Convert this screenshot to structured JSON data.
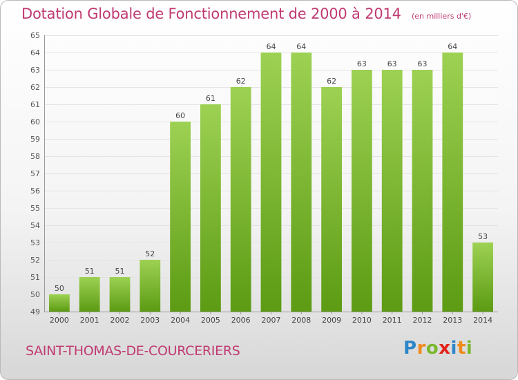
{
  "title": "Dotation Globale de Fonctionnement de 2000 à 2014",
  "subtitle": "(en milliers d'€)",
  "commune": "SAINT-THOMAS-DE-COURCERIERS",
  "logo": {
    "text": "Proxiti",
    "letters": [
      "P",
      "r",
      "o",
      "x",
      "i",
      "t",
      "i"
    ],
    "colors": [
      "#2d86c7",
      "#f08a1a",
      "#7ab82e",
      "#e2231a",
      "#2d86c7",
      "#f08a1a",
      "#7ab82e"
    ]
  },
  "colors": {
    "title": "#c03a72",
    "bar_top": "#9dd153",
    "bar_bottom": "#5c9b13",
    "grid": "#e4e4e4"
  },
  "chart_data": {
    "type": "bar",
    "title": "Dotation Globale de Fonctionnement de 2000 à 2014",
    "subtitle": "(en milliers d'€)",
    "categories": [
      "2000",
      "2001",
      "2002",
      "2003",
      "2004",
      "2005",
      "2006",
      "2007",
      "2008",
      "2009",
      "2010",
      "2011",
      "2012",
      "2013",
      "2014"
    ],
    "values": [
      50,
      51,
      51,
      52,
      60,
      61,
      62,
      64,
      64,
      62,
      63,
      63,
      63,
      64,
      53
    ],
    "ylim": [
      49,
      65
    ],
    "yticks": [
      49,
      50,
      51,
      52,
      53,
      54,
      55,
      56,
      57,
      58,
      59,
      60,
      61,
      62,
      63,
      64,
      65
    ],
    "grid": true,
    "xlabel": "",
    "ylabel": ""
  }
}
